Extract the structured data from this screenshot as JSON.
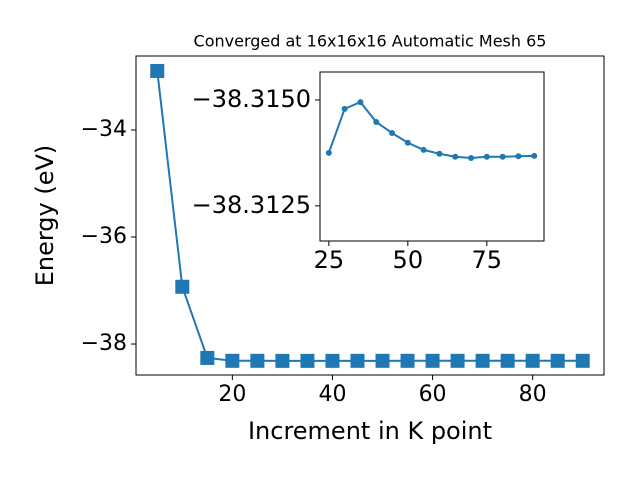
{
  "chart_data": [
    {
      "type": "line",
      "title": "Converged at 16x16x16 Automatic Mesh 65",
      "x_label": "Increment in K point",
      "y_label": "Energy (eV)",
      "marker": "square",
      "x": [
        5,
        10,
        15,
        20,
        25,
        30,
        35,
        40,
        45,
        50,
        55,
        60,
        65,
        70,
        75,
        80,
        85,
        90
      ],
      "series": [
        {
          "color": "#1f77b4",
          "values": [
            -32.897,
            -36.93,
            -38.26,
            -38.3137,
            -38.31375,
            -38.31479,
            -38.31495,
            -38.31448,
            -38.31422,
            -38.31399,
            -38.31382,
            -38.31373,
            -38.31366,
            -38.31363,
            -38.31366,
            -38.31366,
            -38.31367,
            -38.31368
          ]
        }
      ],
      "xlim": [
        0.75,
        94.25
      ],
      "ylim": [
        -38.579,
        -32.617
      ],
      "xticks": [
        20,
        40,
        60,
        80
      ],
      "yticks": [
        {
          "value": -38,
          "label": "−38"
        },
        {
          "value": -36,
          "label": "−36"
        },
        {
          "value": -34,
          "label": "−34"
        }
      ]
    },
    {
      "type": "line",
      "marker": "circle",
      "x": [
        25,
        30,
        35,
        40,
        45,
        50,
        55,
        60,
        65,
        70,
        75,
        80,
        85,
        90
      ],
      "series": [
        {
          "color": "#1f77b4",
          "values": [
            -38.31375,
            -38.31479,
            -38.31495,
            -38.31448,
            -38.31422,
            -38.31399,
            -38.31382,
            -38.31373,
            -38.31366,
            -38.31363,
            -38.31366,
            -38.31366,
            -38.31367,
            -38.31368
          ]
        }
      ],
      "xlim": [
        22.2,
        93.1
      ],
      "ylim": [
        -38.31167,
        -38.31566
      ],
      "xticks": [
        25,
        50,
        75
      ],
      "yticks": [
        {
          "value": -38.3125,
          "label": "−38.3125"
        },
        {
          "value": -38.315,
          "label": "−38.3150"
        }
      ]
    }
  ]
}
